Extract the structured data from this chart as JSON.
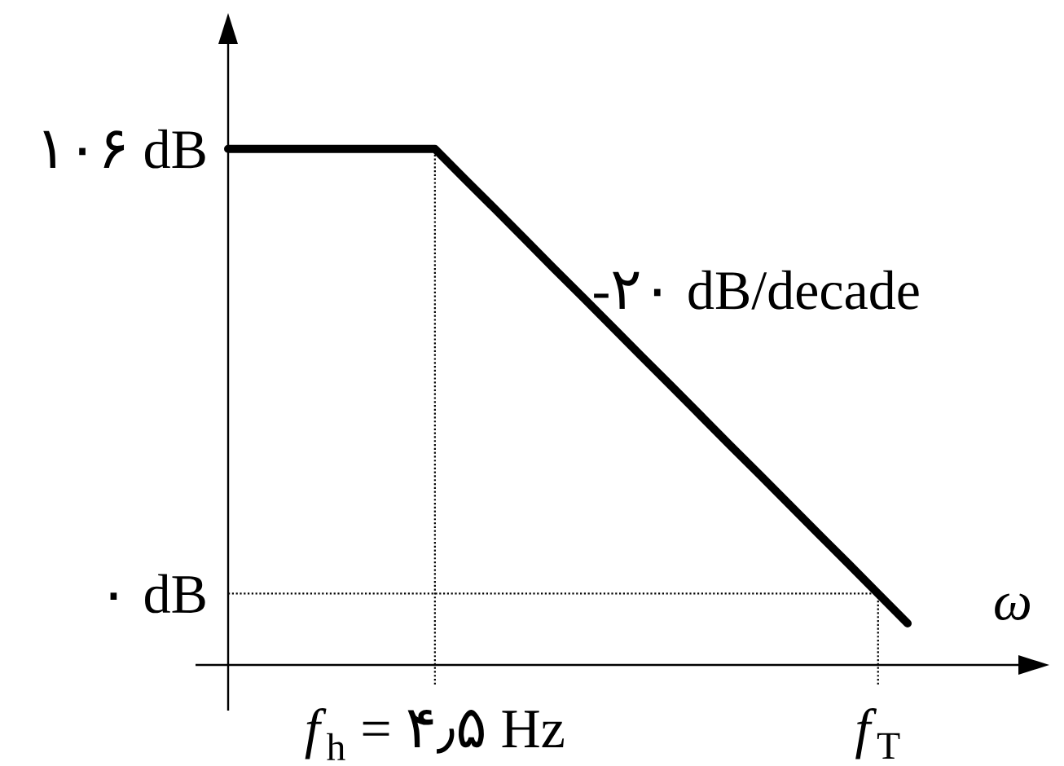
{
  "chart_data": {
    "type": "line",
    "xlabel": "ω",
    "categories": [
      null,
      null,
      null,
      null,
      null,
      null,
      null,
      "*f*$_{h}$ = ۴٫۵ Hz",
      null,
      null,
      null,
      null,
      null,
      null,
      null,
      null,
      null,
      null,
      null,
      null,
      null,
      null,
      "*f*$_{T}$",
      null
    ],
    "series": [
      {
        "color": "#000000",
        "values": [
          106,
          106,
          106,
          106,
          106,
          106,
          106,
          106,
          98.9,
          91.9,
          84.8,
          77.7,
          70.7,
          63.6,
          56.5,
          49.5,
          42.4,
          35.3,
          28.3,
          21.2,
          14.1,
          7.1,
          0,
          -7.1
        ]
      }
    ],
    "ylim": [
      -17,
      131
    ],
    "yticks": [
      {
        "value": 0,
        "label": "۰ dB"
      },
      {
        "value": 106,
        "label": "۱۰۶ dB"
      }
    ],
    "annotations": [
      "-۲۰ dB/decade"
    ],
    "ref_lines": [
      {
        "axis": "x",
        "value": "*f*$_{h}$ = ۴٫۵ Hz",
        "line_style": "dotted"
      },
      {
        "axis": "y",
        "value": 0,
        "line_style": "dotted"
      },
      {
        "axis": "x",
        "value": "*f*$_{T}$",
        "line_style": "dotted"
      }
    ]
  }
}
